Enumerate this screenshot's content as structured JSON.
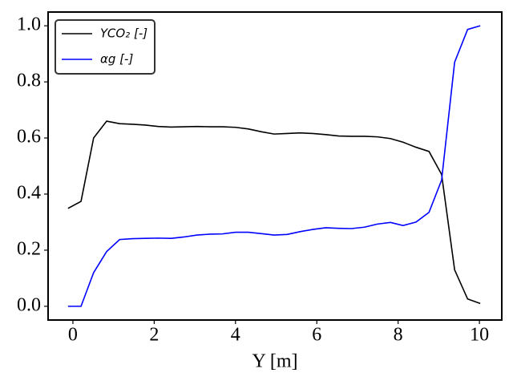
{
  "chart_data": {
    "type": "line",
    "xlabel": "Y [m]",
    "x": [
      -0.12,
      0.2,
      0.51,
      0.83,
      1.15,
      1.47,
      1.78,
      2.1,
      2.42,
      2.73,
      3.05,
      3.37,
      3.68,
      4.0,
      4.32,
      4.64,
      4.95,
      5.27,
      5.59,
      5.9,
      6.22,
      6.54,
      6.85,
      7.17,
      7.49,
      7.81,
      8.12,
      8.44,
      8.76,
      9.07,
      9.39,
      9.71,
      10.02
    ],
    "series": [
      {
        "name": "YCO₂ [-]",
        "color": "#000000",
        "values": [
          0.349,
          0.374,
          0.6,
          0.66,
          0.651,
          0.649,
          0.646,
          0.641,
          0.639,
          0.64,
          0.641,
          0.64,
          0.64,
          0.638,
          0.632,
          0.622,
          0.614,
          0.616,
          0.618,
          0.616,
          0.612,
          0.607,
          0.606,
          0.606,
          0.604,
          0.598,
          0.585,
          0.567,
          0.552,
          0.47,
          0.13,
          0.026,
          0.01
        ]
      },
      {
        "name": "αg [-]",
        "color": "#0000ff",
        "values": [
          0,
          0,
          0.12,
          0.195,
          0.238,
          0.241,
          0.242,
          0.243,
          0.242,
          0.247,
          0.254,
          0.257,
          0.258,
          0.264,
          0.264,
          0.259,
          0.254,
          0.256,
          0.266,
          0.274,
          0.28,
          0.278,
          0.277,
          0.282,
          0.293,
          0.299,
          0.288,
          0.3,
          0.335,
          0.45,
          0.87,
          0.987,
          1.0
        ]
      }
    ],
    "xlim": [
      -0.61,
      10.55
    ],
    "xticks": [
      0,
      2,
      4,
      6,
      8,
      10
    ],
    "ylim": [
      -0.049,
      1.049
    ],
    "yticks": [
      {
        "value": 0,
        "label": "0.0"
      },
      0.2,
      0.4,
      0.6,
      0.8,
      {
        "value": 1,
        "label": "1.0"
      }
    ],
    "grid": false,
    "legend": "upper left"
  }
}
